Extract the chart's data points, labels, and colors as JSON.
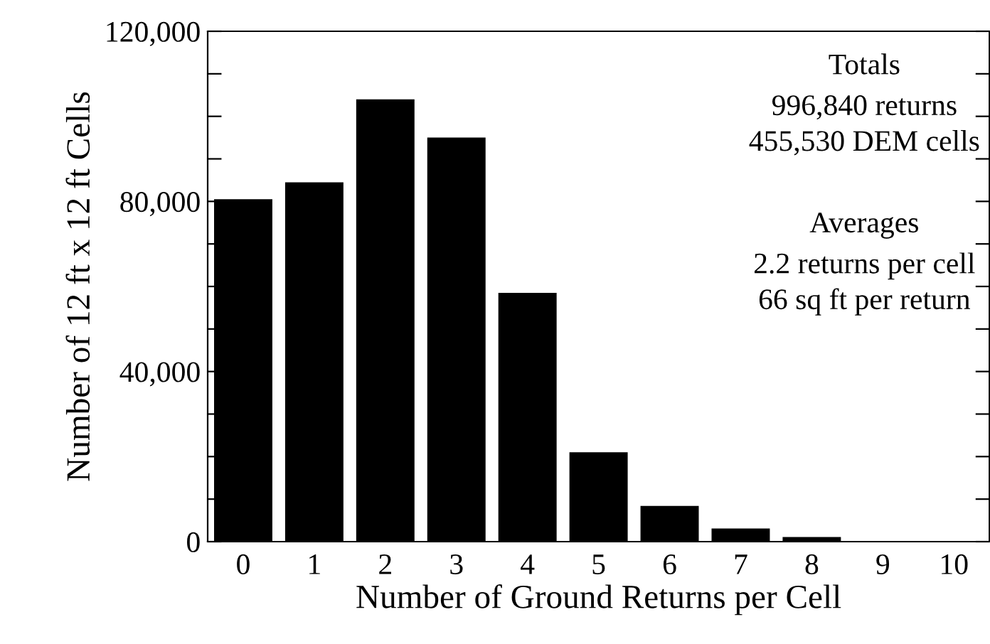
{
  "chart_data": {
    "type": "bar",
    "xlabel": "Number of Ground Returns per Cell",
    "ylabel": "Number of 12 ft x 12 ft Cells",
    "categories": [
      "0",
      "1",
      "2",
      "3",
      "4",
      "5",
      "6",
      "7",
      "8",
      "9",
      "10"
    ],
    "values": [
      80500,
      84500,
      104000,
      95000,
      58500,
      21000,
      8400,
      3100,
      1100,
      0,
      0
    ],
    "color": "#000000",
    "ylim": [
      0,
      120000
    ],
    "yticks": [
      {
        "value": 0,
        "label": "0"
      },
      {
        "value": 10000,
        "label": null
      },
      {
        "value": 20000,
        "label": null
      },
      {
        "value": 30000,
        "label": null
      },
      {
        "value": 40000,
        "label": "40,000"
      },
      {
        "value": 50000,
        "label": null
      },
      {
        "value": 60000,
        "label": null
      },
      {
        "value": 70000,
        "label": null
      },
      {
        "value": 80000,
        "label": "80,000"
      },
      {
        "value": 90000,
        "label": null
      },
      {
        "value": 100000,
        "label": null
      },
      {
        "value": 110000,
        "label": null
      },
      {
        "value": 120000,
        "label": "120,000"
      }
    ],
    "grid": false,
    "legend": false,
    "annotations": [
      "Totals",
      "996,840 returns",
      "455,530 DEM cells",
      "Averages",
      "2.2 returns per cell",
      "66 sq ft per return"
    ]
  }
}
